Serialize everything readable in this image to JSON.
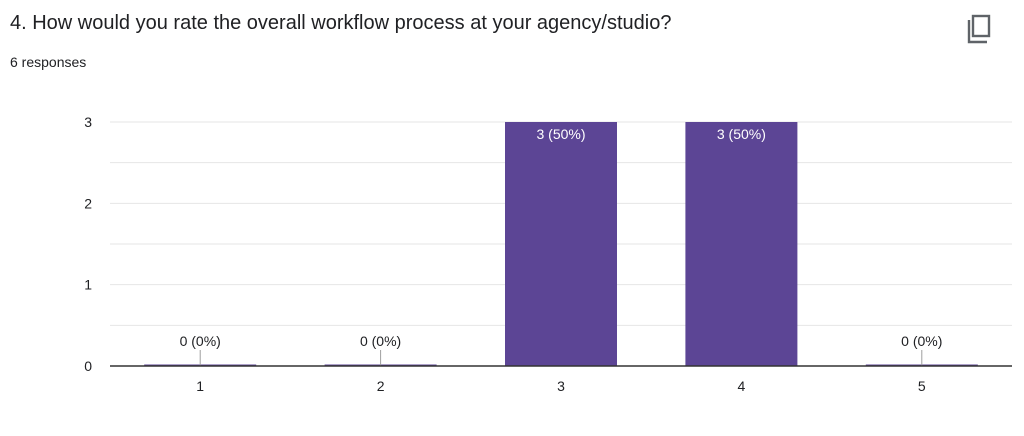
{
  "header": {
    "question": "4. How would you rate the overall workflow process at your agency/studio?",
    "responses": "6 responses",
    "copy_icon": "copy-icon"
  },
  "colors": {
    "bar": "#5c4595",
    "grid": "#e6e6e6",
    "axis": "#333333",
    "text": "#202124"
  },
  "chart_data": {
    "type": "bar",
    "categories": [
      "1",
      "2",
      "3",
      "4",
      "5"
    ],
    "values": [
      0,
      0,
      3,
      3,
      0
    ],
    "data_labels": [
      "0 (0%)",
      "0 (0%)",
      "3 (50%)",
      "3 (50%)",
      "0 (0%)"
    ],
    "y_ticks": [
      "0",
      "1",
      "2",
      "3"
    ],
    "ylim": [
      0,
      3
    ],
    "grid": true,
    "title": "",
    "xlabel": "",
    "ylabel": ""
  }
}
